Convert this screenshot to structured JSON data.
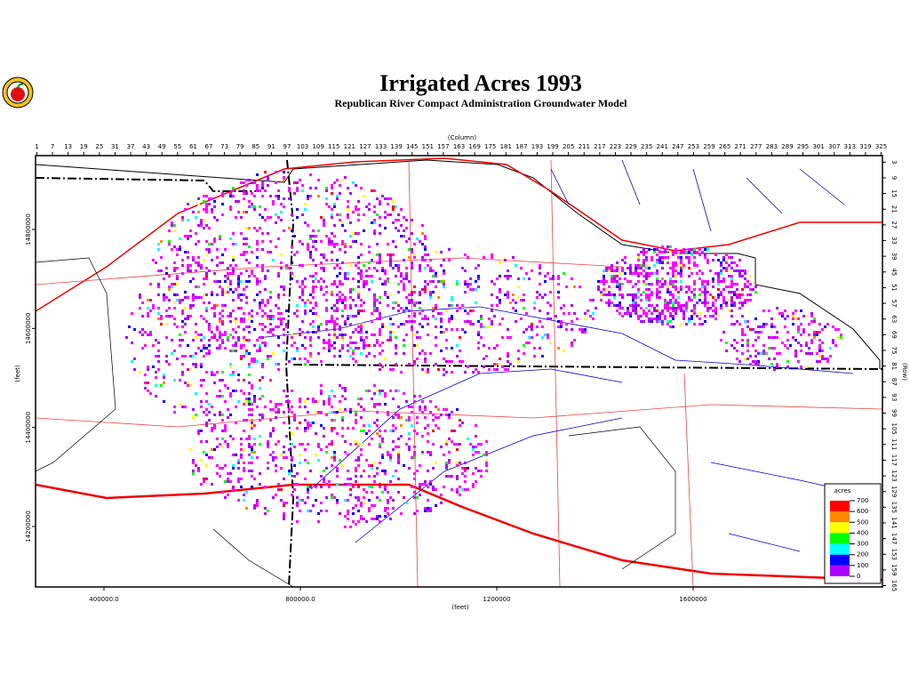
{
  "header": {
    "title": "Irrigated Acres 1993",
    "subtitle": "Republican River Compact Administration Groundwater Model"
  },
  "column_axis": {
    "label": "(Column)",
    "ticks": [
      1,
      7,
      13,
      19,
      25,
      31,
      37,
      43,
      49,
      55,
      61,
      67,
      73,
      79,
      85,
      91,
      97,
      103,
      109,
      115,
      121,
      127,
      133,
      139,
      145,
      151,
      157,
      163,
      169,
      175,
      181,
      187,
      193,
      199,
      205,
      211,
      217,
      223,
      229,
      235,
      241,
      247,
      253,
      259,
      265,
      271,
      277,
      283,
      289,
      295,
      301,
      307,
      313,
      319,
      325
    ]
  },
  "row_axis": {
    "label": "(Row)",
    "ticks": [
      3,
      9,
      15,
      21,
      27,
      33,
      39,
      45,
      51,
      57,
      63,
      69,
      75,
      81,
      87,
      93,
      99,
      105,
      111,
      117,
      123,
      129,
      135,
      141,
      147,
      153,
      159,
      165
    ]
  },
  "x_feet_axis": {
    "label": "(feet)",
    "ticks": [
      {
        "value": 400000,
        "label": "400000.0"
      },
      {
        "value": 800000,
        "label": "800000.0"
      },
      1200000,
      1600000
    ]
  },
  "y_feet_axis": {
    "label": "(feet)",
    "ticks": [
      14800000,
      14600000,
      14400000,
      14200000
    ]
  },
  "legend": {
    "title": "acres",
    "ticks": [
      700,
      600,
      500,
      400,
      300,
      200,
      100,
      0
    ],
    "colors": [
      "#ff0000",
      "#ff8800",
      "#ffff00",
      "#00ff00",
      "#00ffff",
      "#0000ff",
      "#aa00ff",
      "#ff00ff"
    ]
  }
}
